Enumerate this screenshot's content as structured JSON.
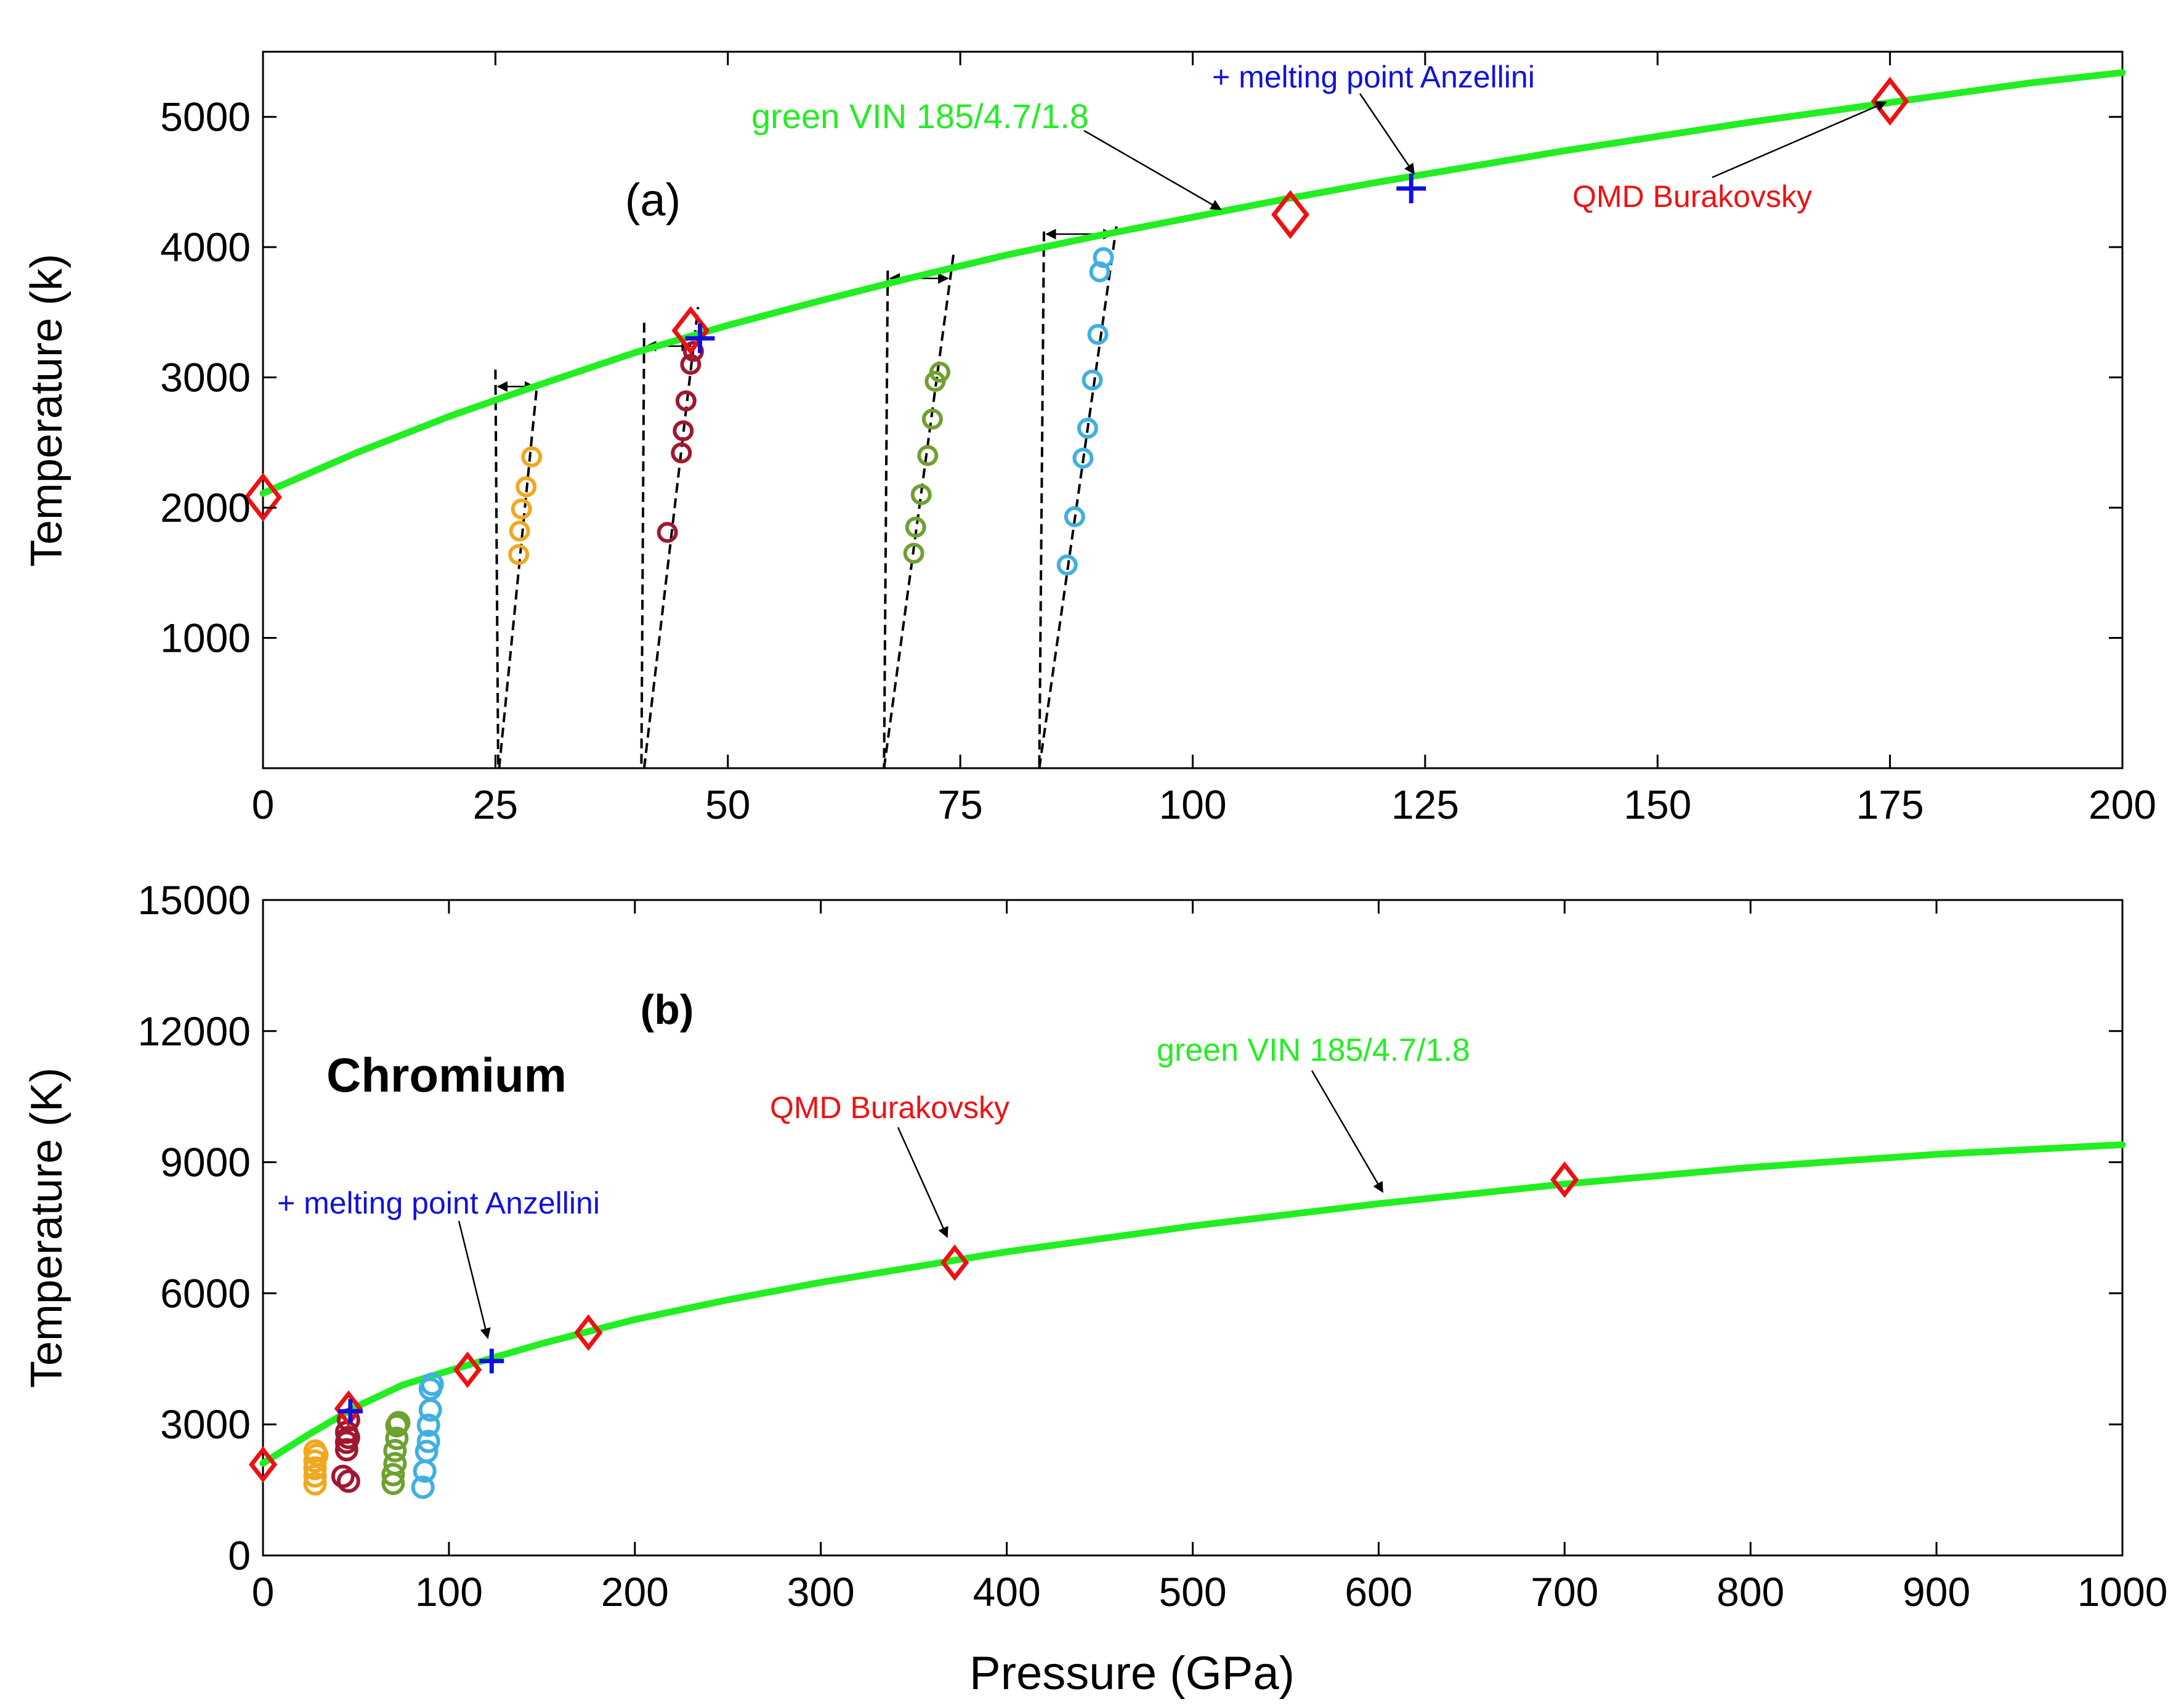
{
  "chart_data": [
    {
      "panel_label": "(a)",
      "type": "scatter",
      "xlabel": "",
      "ylabel": "Temperature  (k)",
      "xlim": [
        0,
        200
      ],
      "ylim": [
        0,
        5500
      ],
      "xticks": [
        0,
        25,
        50,
        75,
        100,
        125,
        150,
        175,
        200
      ],
      "yticks": [
        1000,
        2000,
        3000,
        4000,
        5000
      ],
      "grid": false,
      "legend": "none",
      "melt_curve": {
        "name": "green VIN 185/4.7/1.8",
        "color": "#22ee22",
        "x": [
          0,
          10,
          20,
          30,
          40,
          50,
          60,
          70,
          80,
          90,
          100,
          110,
          120,
          130,
          140,
          150,
          160,
          170,
          180,
          190,
          200
        ],
        "y": [
          2110,
          2420,
          2700,
          2950,
          3190,
          3400,
          3590,
          3770,
          3940,
          4090,
          4230,
          4370,
          4500,
          4620,
          4740,
          4850,
          4960,
          5060,
          5160,
          5260,
          5340
        ]
      },
      "qmd": {
        "name": "QMD Burakovsky",
        "color": "#ee1111",
        "x": [
          0,
          46,
          110.5,
          175
        ],
        "y": [
          2080,
          3360,
          4250,
          5120
        ]
      },
      "anzellini": {
        "name": "+ melting point Anzellini",
        "color": "#1111dd",
        "x": [
          47,
          123.5
        ],
        "y": [
          3300,
          4450
        ]
      },
      "series": [
        {
          "color": "#f0a820",
          "x": [
            27.5,
            27.6,
            27.8,
            28.3,
            28.9
          ],
          "y": [
            1640,
            1820,
            1990,
            2160,
            2390
          ]
        },
        {
          "color": "#a01830",
          "x": [
            43.5,
            45.0,
            45.2,
            45.5,
            46.0,
            46.3
          ],
          "y": [
            1810,
            2420,
            2590,
            2820,
            3100,
            3200
          ]
        },
        {
          "color": "#70a030",
          "x": [
            70.0,
            70.2,
            70.8,
            71.5,
            72.0,
            72.3,
            72.8
          ],
          "y": [
            1650,
            1850,
            2100,
            2400,
            2680,
            2970,
            3040
          ]
        },
        {
          "color": "#40b0e0",
          "x": [
            86.5,
            87.3,
            88.2,
            88.7,
            89.2,
            89.8,
            90.0,
            90.4
          ],
          "y": [
            1560,
            1930,
            2380,
            2610,
            2980,
            3330,
            3810,
            3920
          ]
        }
      ],
      "annotations": [
        "green VIN 185/4.7/1.8",
        "+ melting point Anzellini",
        "QMD Burakovsky",
        "(a)"
      ]
    },
    {
      "panel_label": "(b)",
      "type": "scatter",
      "title": "Chromium",
      "xlabel": "Pressure  (GPa)",
      "ylabel": "Temperature  (K)",
      "xlim": [
        0,
        1000
      ],
      "ylim": [
        0,
        15000
      ],
      "xticks": [
        0,
        100,
        200,
        300,
        400,
        500,
        600,
        700,
        800,
        900,
        1000
      ],
      "yticks": [
        0,
        3000,
        6000,
        9000,
        12000,
        15000
      ],
      "grid": false,
      "legend": "none",
      "melt_curve": {
        "name": "green VIN 185/4.7/1.8",
        "color": "#22ee22",
        "x": [
          0,
          25,
          50,
          75,
          100,
          150,
          200,
          250,
          300,
          400,
          500,
          600,
          700,
          800,
          900,
          1000
        ],
        "y": [
          2110,
          2780,
          3400,
          3900,
          4230,
          4850,
          5400,
          5850,
          6250,
          6950,
          7540,
          8050,
          8500,
          8880,
          9180,
          9400
        ]
      },
      "qmd": {
        "name": "QMD Burakovsky",
        "color": "#ee1111",
        "x": [
          0,
          46,
          110,
          175,
          372,
          700
        ],
        "y": [
          2080,
          3360,
          4250,
          5100,
          6700,
          8600
        ]
      },
      "anzellini": {
        "name": "+ melting point Anzellini",
        "color": "#1111dd",
        "x": [
          47,
          123
        ],
        "y": [
          3300,
          4450
        ]
      },
      "series": [
        {
          "color": "#f0a820",
          "x": [
            28,
            28,
            28,
            28,
            28,
            28,
            29
          ],
          "y": [
            1640,
            1820,
            1990,
            2160,
            2390,
            2000,
            2300
          ]
        },
        {
          "color": "#a01830",
          "x": [
            43,
            45,
            45,
            45,
            46,
            46,
            46
          ],
          "y": [
            1810,
            2420,
            2590,
            2820,
            3100,
            2700,
            1700
          ]
        },
        {
          "color": "#70a030",
          "x": [
            70,
            70,
            71,
            71,
            72,
            72,
            73
          ],
          "y": [
            1650,
            1850,
            2100,
            2400,
            2680,
            2970,
            3040
          ]
        },
        {
          "color": "#40b0e0",
          "x": [
            86,
            87,
            88,
            89,
            89,
            90,
            90,
            91
          ],
          "y": [
            1560,
            1930,
            2380,
            2610,
            2980,
            3330,
            3810,
            3920
          ]
        }
      ],
      "annotations": [
        "Chromium",
        "QMD Burakovsky",
        "green VIN 185/4.7/1.8",
        "+ melting point Anzellini",
        "(b)"
      ]
    }
  ]
}
